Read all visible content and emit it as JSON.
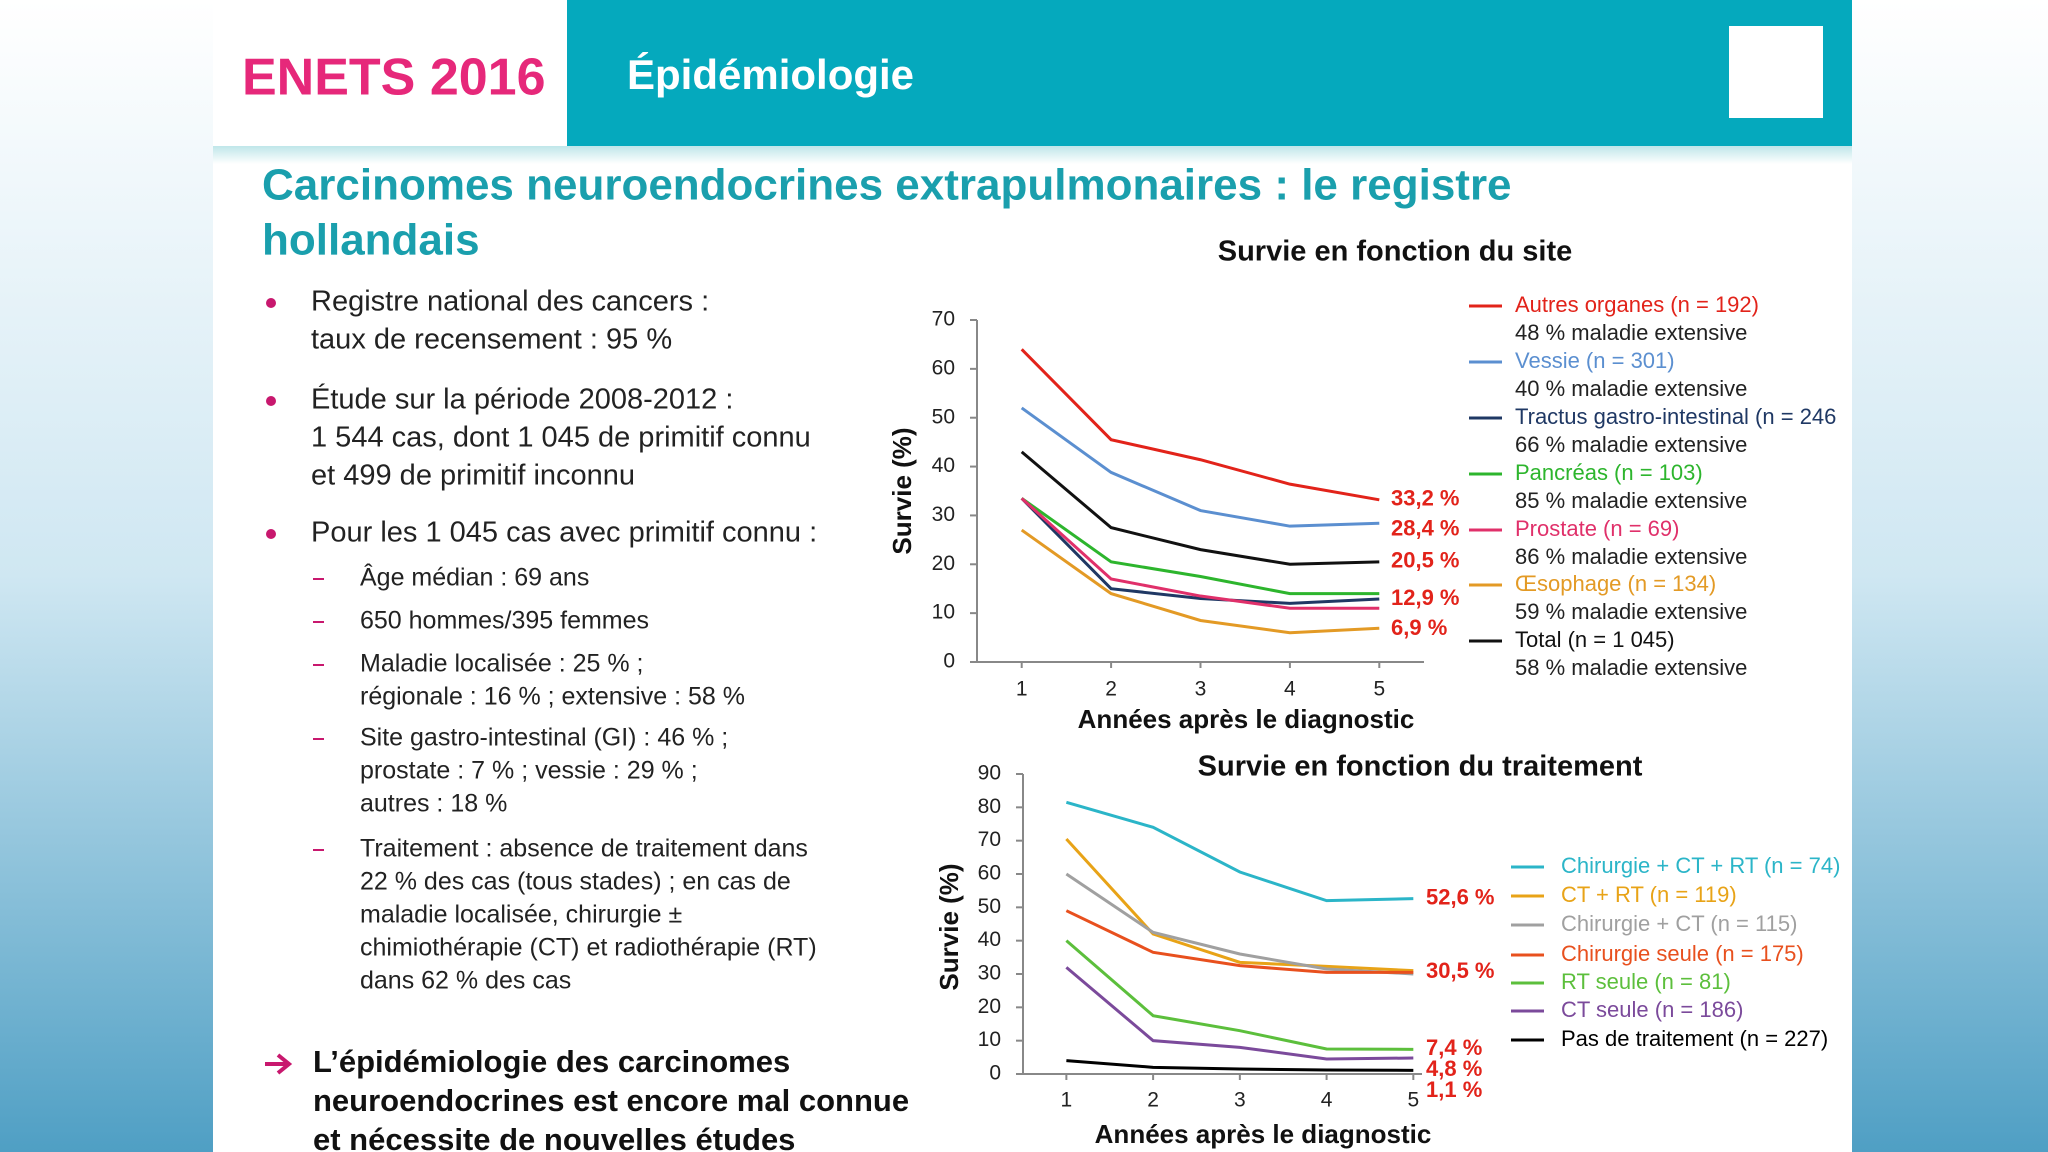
{
  "header": {
    "brand": "ENETS 2016",
    "section": "Épidémiologie"
  },
  "title": {
    "lines": [
      "Carcinomes neuroendocrines extrapulmonaires : le registre",
      "hollandais"
    ]
  },
  "bullets": [
    {
      "lines": [
        "Registre national des cancers :",
        "taux de recensement : 95 %"
      ]
    },
    {
      "lines": [
        "Étude sur la période 2008-2012 :",
        "1 544 cas, dont 1 045 de primitif connu",
        "et 499 de primitif inconnu"
      ]
    },
    {
      "lines": [
        "Pour les 1 045 cas avec primitif connu :"
      ],
      "sub": [
        {
          "lines": [
            "Âge médian : 69 ans"
          ]
        },
        {
          "lines": [
            "650 hommes/395 femmes"
          ]
        },
        {
          "lines": [
            "Maladie localisée : 25 % ;",
            "régionale : 16 % ; extensive : 58 %"
          ]
        },
        {
          "lines": [
            "Site gastro-intestinal (GI) : 46 % ;",
            "prostate : 7 % ; vessie : 29 % ;",
            "autres : 18 %"
          ]
        },
        {
          "lines": [
            "Traitement : absence de traitement dans",
            "22 % des cas (tous stades) ; en cas de",
            "maladie localisée, chirurgie ±",
            "chimiothérapie (CT) et radiothérapie (RT)",
            "dans 62 % des cas"
          ]
        }
      ]
    }
  ],
  "conclusion": {
    "lines": [
      "L’épidémiologie des carcinomes",
      "neuroendocrines est encore mal connue",
      "et nécessite de nouvelles études"
    ]
  },
  "chart_data": [
    {
      "type": "line",
      "title": "Survie en fonction du site",
      "x_label": "Années après le diagnostic",
      "y_label": "Survie (%)",
      "x": [
        1,
        2,
        3,
        4,
        5
      ],
      "xlim": [
        0.5,
        5.5
      ],
      "xticks": [
        1,
        2,
        3,
        4,
        5
      ],
      "ylim": [
        0,
        70
      ],
      "yticks": [
        0,
        10,
        20,
        30,
        40,
        50,
        60,
        70
      ],
      "series": [
        {
          "name": "Autres organes (n = 192)",
          "detail": "48 % maladie extensive",
          "color": "#e2231a",
          "values": [
            64,
            45.5,
            41.4,
            36.4,
            33.2
          ],
          "value_labels": [
            null,
            null,
            null,
            null,
            "33,2 %"
          ]
        },
        {
          "name": "Vessie (n = 301)",
          "detail": "40 % maladie extensive",
          "color": "#5b8fd0",
          "values": [
            52,
            38.8,
            31,
            27.8,
            28.4
          ],
          "value_labels": [
            null,
            null,
            null,
            null,
            "28,4 %"
          ]
        },
        {
          "name": "Tractus gastro-intestinal (n = 246",
          "detail": "66 % maladie extensive",
          "color": "#1f3864",
          "values": [
            33.5,
            15,
            13,
            12,
            12.9
          ],
          "value_labels": [
            null,
            null,
            null,
            null,
            "12,9 %"
          ]
        },
        {
          "name": "Pancréas (n = 103)",
          "detail": "85 % maladie extensive",
          "color": "#2db52d",
          "values": [
            33.5,
            20.5,
            17.5,
            14,
            14
          ]
        },
        {
          "name": "Prostate (n = 69)",
          "detail": "86 % maladie extensive",
          "color": "#e0306a",
          "values": [
            33.5,
            17,
            13.5,
            11,
            11
          ]
        },
        {
          "name": "Œsophage (n = 134)",
          "detail": "59 % maladie extensive",
          "color": "#e39a25",
          "values": [
            27,
            14,
            8.5,
            6,
            6.9
          ],
          "value_labels": [
            null,
            null,
            null,
            null,
            "6,9 %"
          ]
        },
        {
          "name": "Total (n = 1 045)",
          "detail": "58 % maladie extensive",
          "color": "#111111",
          "values": [
            43,
            27.5,
            23,
            20,
            20.5
          ],
          "value_labels": [
            null,
            null,
            null,
            null,
            "20,5 %"
          ]
        }
      ]
    },
    {
      "type": "line",
      "title": "Survie en fonction du traitement",
      "x_label": "Années après le diagnostic",
      "y_label": "Survie (%)",
      "x": [
        1,
        2,
        3,
        4,
        5
      ],
      "xlim": [
        0.5,
        5.1
      ],
      "xticks": [
        1,
        2,
        3,
        4,
        5
      ],
      "ylim": [
        0,
        90
      ],
      "yticks": [
        0,
        10,
        20,
        30,
        40,
        50,
        60,
        70,
        80,
        90
      ],
      "series": [
        {
          "name": "Chirurgie + CT + RT (n = 74)",
          "color": "#2bb5c8",
          "values": [
            81.5,
            74,
            60.6,
            52,
            52.6
          ],
          "value_labels": [
            null,
            null,
            null,
            null,
            "52,6 %"
          ]
        },
        {
          "name": "CT + RT (n = 119)",
          "color": "#e8a317",
          "values": [
            70.5,
            42,
            33.5,
            32.3,
            31
          ]
        },
        {
          "name": "Chirurgie + CT (n = 115)",
          "color": "#a0a0a0",
          "values": [
            60,
            42.5,
            36,
            31.5,
            30
          ]
        },
        {
          "name": "Chirurgie seule (n = 175)",
          "color": "#e8501e",
          "values": [
            49,
            36.5,
            32.5,
            30.5,
            30.5
          ],
          "value_labels": [
            null,
            null,
            null,
            null,
            "30,5 %"
          ]
        },
        {
          "name": "RT seule (n = 81)",
          "color": "#5cbf3c",
          "values": [
            40,
            17.5,
            13,
            7.5,
            7.4
          ],
          "value_labels": [
            null,
            null,
            null,
            null,
            "7,4 %"
          ]
        },
        {
          "name": "CT seule (n = 186)",
          "color": "#7b4a9b",
          "values": [
            32,
            10,
            8,
            4.5,
            4.8
          ],
          "value_labels": [
            null,
            null,
            null,
            null,
            "4,8 %"
          ]
        },
        {
          "name": "Pas de traitement (n = 227)",
          "color": "#000000",
          "values": [
            4,
            2,
            1.5,
            1.2,
            1.1
          ],
          "value_labels": [
            null,
            null,
            null,
            null,
            "1,1 %"
          ]
        }
      ]
    }
  ]
}
